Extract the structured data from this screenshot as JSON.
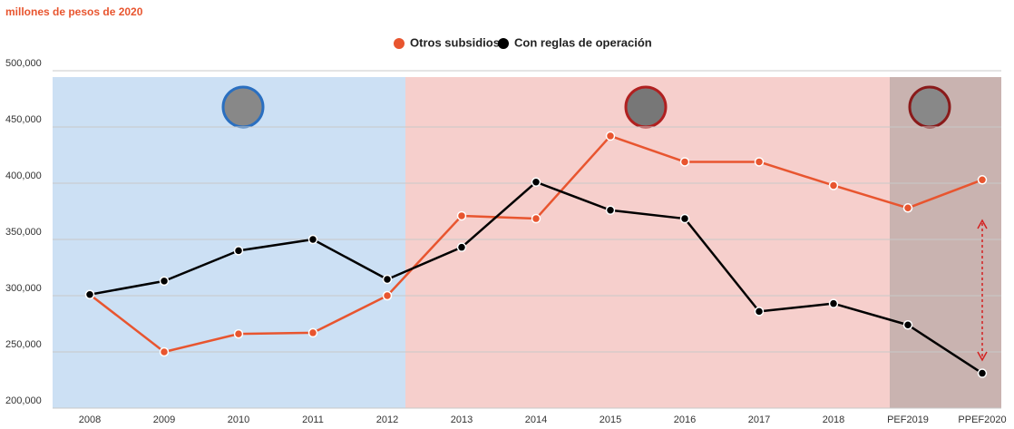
{
  "chart_data": {
    "type": "line",
    "title": "millones de pesos de 2020",
    "categories": [
      "2008",
      "2009",
      "2010",
      "2011",
      "2012",
      "2013",
      "2014",
      "2015",
      "2016",
      "2017",
      "2018",
      "PEF2019",
      "PPEF2020"
    ],
    "series": [
      {
        "name": "Otros subsidios",
        "color": "#e8552f",
        "values": [
          301000,
          250000,
          266000,
          267000,
          300000,
          371000,
          368500,
          442000,
          419000,
          419000,
          398000,
          378000,
          403000
        ]
      },
      {
        "name": "Con reglas de operación",
        "color": "#000000",
        "values": [
          301000,
          313000,
          340000,
          350000,
          314500,
          343000,
          401000,
          376000,
          368500,
          286000,
          293000,
          274000,
          231000
        ]
      }
    ],
    "ylim": [
      200000,
      500000
    ],
    "yticks": [
      {
        "value": 200000,
        "label": "200,000"
      },
      {
        "value": 250000,
        "label": "250,000"
      },
      {
        "value": 300000,
        "label": "300,000"
      },
      {
        "value": 350000,
        "label": "350,000"
      },
      {
        "value": 400000,
        "label": "400,000"
      },
      {
        "value": 450000,
        "label": "450,000"
      },
      {
        "value": 500000,
        "label": "500,000"
      }
    ],
    "grid": true
  }
}
